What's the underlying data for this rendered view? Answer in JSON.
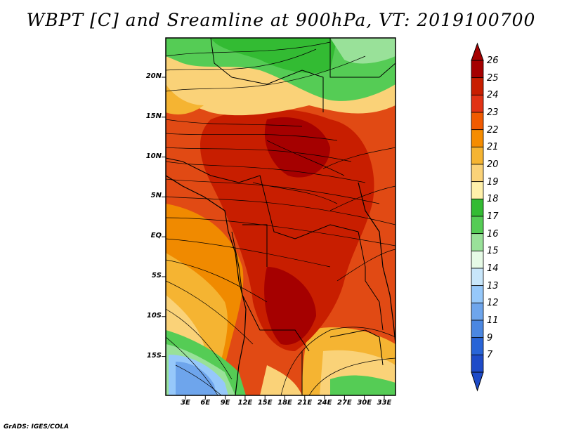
{
  "title": "WBPT [C] and Sreamline at 900hPa, VT: 2019100700",
  "credit": "GrADS: IGES/COLA",
  "map": {
    "variable": "WBPT [C]",
    "overlay": "Streamline",
    "level": "900hPa",
    "valid_time": "2019100700",
    "lat_labels": [
      "20N",
      "15N",
      "10N",
      "5N",
      "EQ",
      "5S",
      "10S",
      "15S"
    ],
    "lon_labels": [
      "3E",
      "6E",
      "9E",
      "12E",
      "15E",
      "18E",
      "21E",
      "24E",
      "27E",
      "30E",
      "33E"
    ]
  },
  "colorbar": {
    "labels": [
      "26",
      "25",
      "24",
      "23",
      "22",
      "21",
      "20",
      "19",
      "18",
      "17",
      "16",
      "15",
      "14",
      "13",
      "12",
      "11",
      "9",
      "7"
    ],
    "colors": [
      "#a50000",
      "#c81e00",
      "#e13214",
      "#f05a00",
      "#f58c00",
      "#f5b432",
      "#fad278",
      "#fff0aa",
      "#33bb33",
      "#55cc55",
      "#99e199",
      "#e6fae6",
      "#c8e6fa",
      "#96c8fa",
      "#6ea5ec",
      "#4b87e1",
      "#2864d7",
      "#1e4bc8"
    ]
  }
}
